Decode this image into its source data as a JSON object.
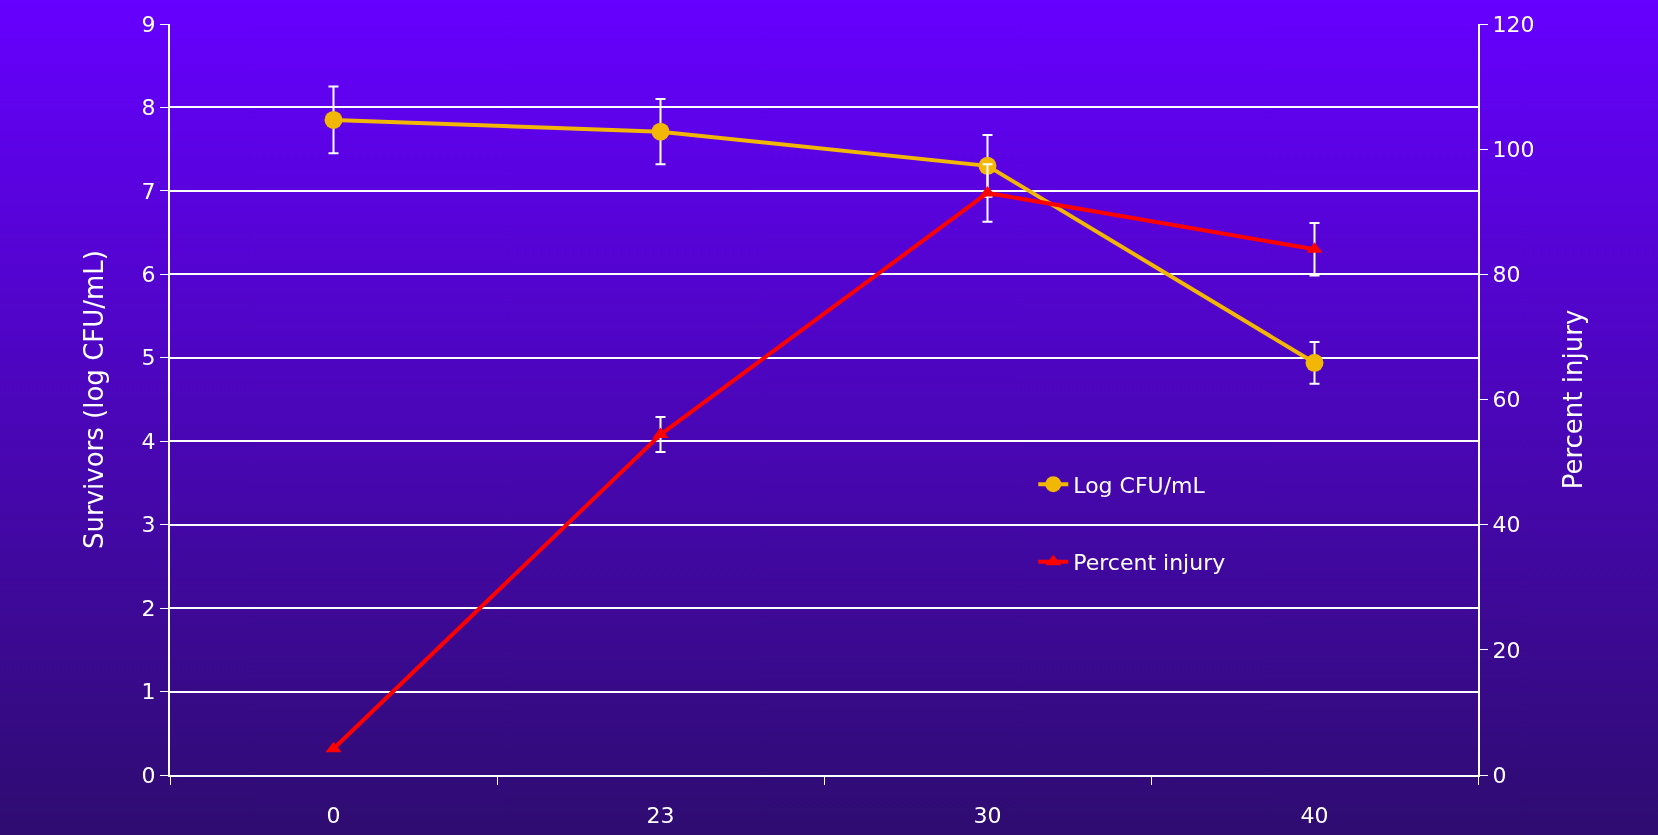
{
  "chart_data": {
    "type": "line",
    "categories": [
      "0",
      "23",
      "30",
      "40"
    ],
    "ylabel": "Survivors (log CFU/mL)",
    "y2label": "Percent injury",
    "ylim": [
      0,
      9
    ],
    "yticks": [
      0,
      1,
      2,
      3,
      4,
      5,
      6,
      7,
      8,
      9
    ],
    "y2lim": [
      0,
      120
    ],
    "y2ticks": [
      0,
      20,
      40,
      60,
      80,
      100,
      120
    ],
    "grid": "y",
    "legend": "right",
    "series": [
      {
        "name": "Log CFU/mL",
        "color": "#f2b705",
        "marker": "circle",
        "values": [
          7.85,
          7.71,
          7.3,
          4.94
        ],
        "errors": [
          0.4,
          0.39,
          0.37,
          0.25
        ]
      },
      {
        "name": "Percent injury",
        "color": "#ff0000",
        "marker": "triangle",
        "axis": "y2",
        "values": [
          4.2,
          54.4,
          93,
          84
        ],
        "errors": [
          null,
          2.8,
          4.6,
          4.2
        ]
      }
    ]
  }
}
